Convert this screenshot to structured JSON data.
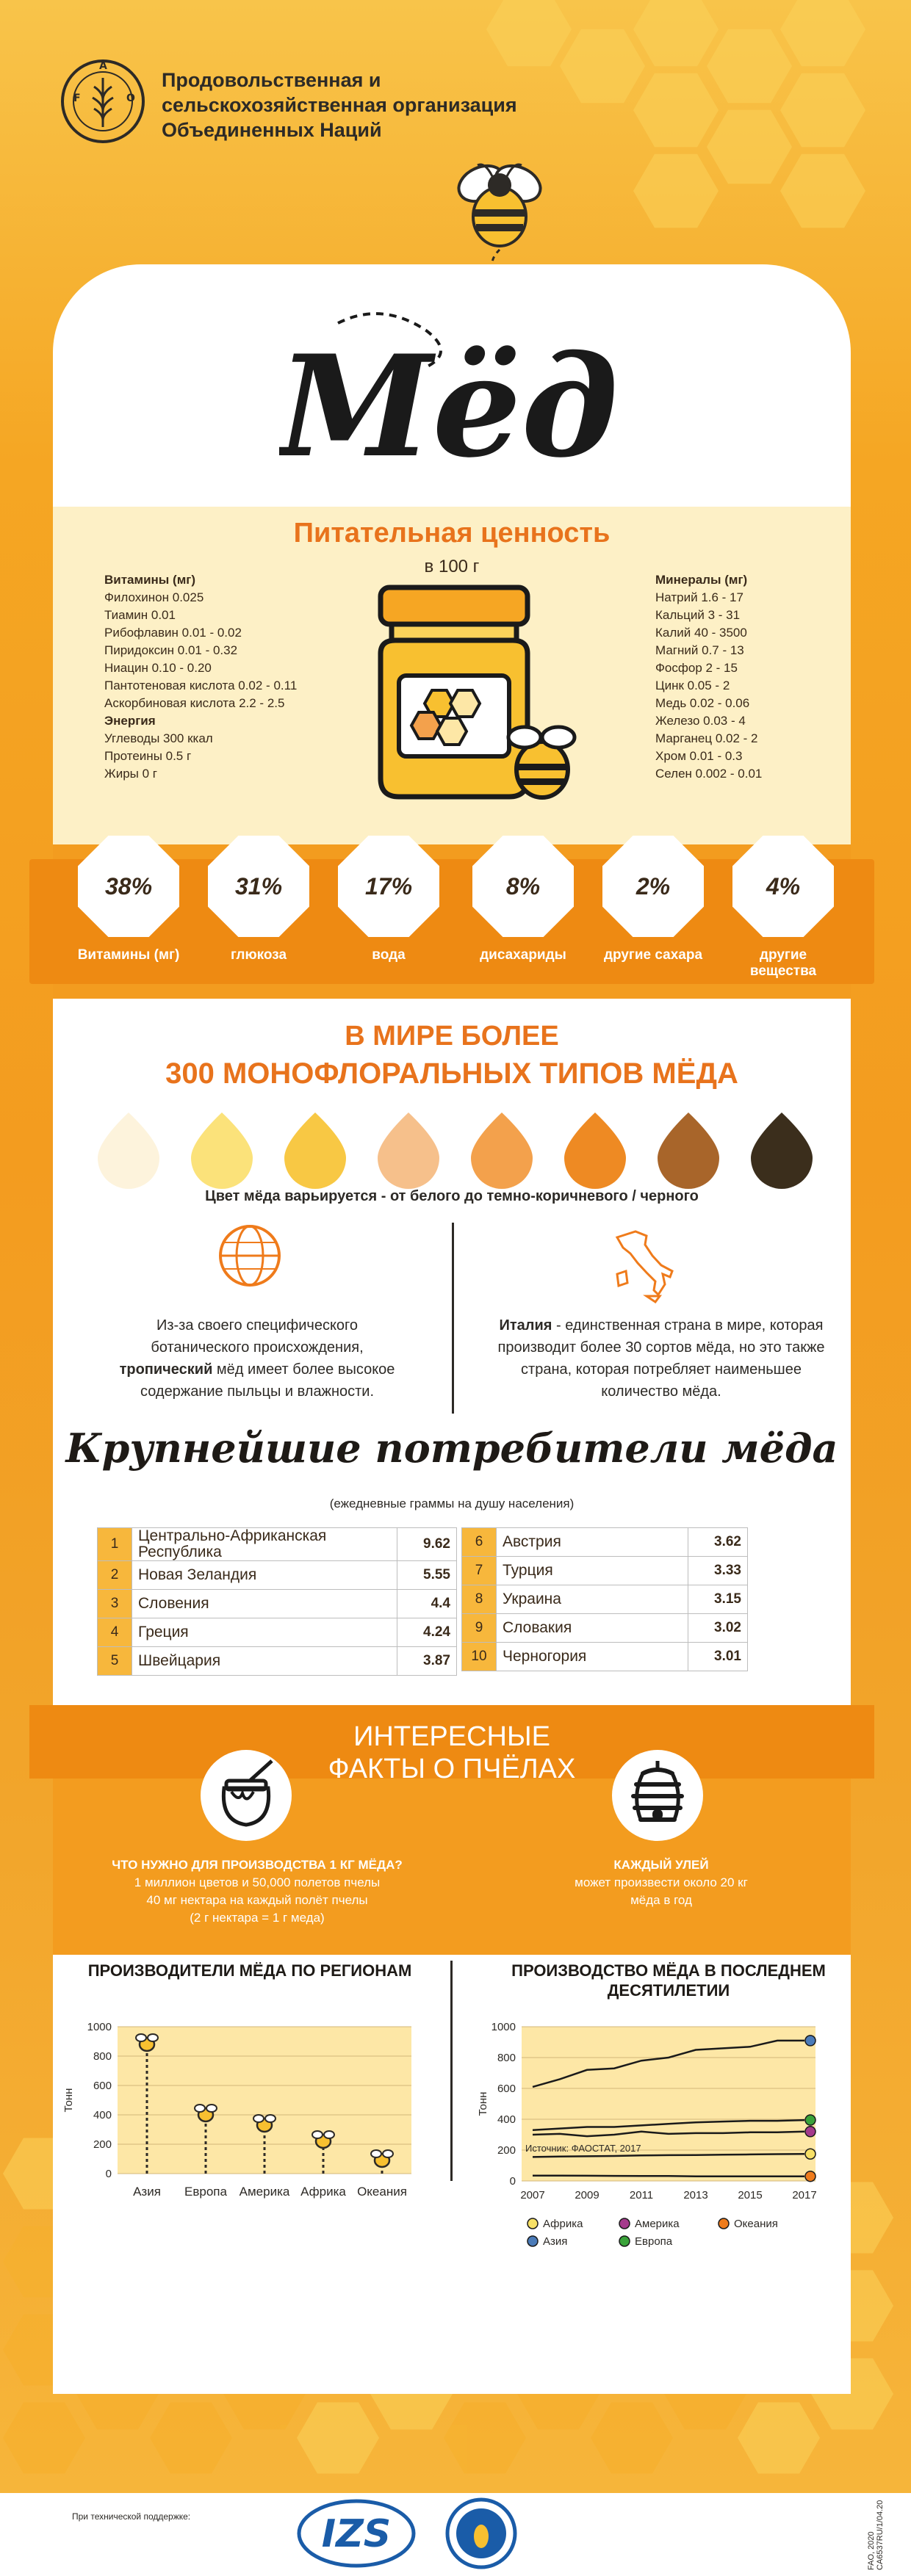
{
  "org": {
    "line1": "Продовольственная и",
    "line2": "сельскохозяйственная организация",
    "line3": "Объединенных Наций",
    "logo_text": "FAO",
    "logo_motto": "FIAT PANIS"
  },
  "title": "Мёд",
  "nutrition": {
    "heading": "Питательная ценность",
    "per": "в 100 г",
    "vitamins_head": "Витамины (мг)",
    "vitamins": [
      "Филохинон  0.025",
      "Тиамин 0.01",
      "Рибофлавин 0.01 - 0.02",
      "Пиридоксин 0.01 - 0.32",
      "Ниацин 0.10 - 0.20",
      "Пантотеновая кислота 0.02 - 0.11",
      "Аскорбиновая кислота 2.2 - 2.5"
    ],
    "energy_head": "Энергия",
    "energy": [
      "Углеводы 300 ккал",
      "Протеины 0.5 г",
      "Жиры  0 г"
    ],
    "minerals_head": "Минералы (мг)",
    "minerals": [
      "Натрий 1.6 - 17",
      "Кальций 3 - 31",
      "Калий 40 - 3500",
      "Магний 0.7 - 13",
      "Фосфор 2 - 15",
      "Цинк 0.05 - 2",
      "Медь 0.02 - 0.06",
      "Железо 0.03 - 4",
      "Марганец 0.02 - 2",
      "Хром 0.01 - 0.3",
      "Селен 0.002 - 0.01"
    ]
  },
  "composition": [
    {
      "value": "38%",
      "label": "Витамины (мг)"
    },
    {
      "value": "31%",
      "label": "глюкоза"
    },
    {
      "value": "17%",
      "label": "вода"
    },
    {
      "value": "8%",
      "label": "дисахариды"
    },
    {
      "value": "2%",
      "label": "другие сахара"
    },
    {
      "value": "4%",
      "label": "другие вещества"
    }
  ],
  "monofloral": {
    "line1": "В МИРЕ БОЛЕЕ",
    "line2": "300 МОНОФЛОРАЛЬНЫХ ТИПОВ МЁДА",
    "drop_colors": [
      "#fdf3dc",
      "#fbe27a",
      "#f8c844",
      "#f6c08b",
      "#f3a14c",
      "#ee8a23",
      "#a8652a",
      "#3b2e1c"
    ],
    "color_note": "Цвет мёда варьируется - от белого до темно-коричневого / черного"
  },
  "facts": {
    "left_1": "Из-за своего специфического ботанического происхождения, ",
    "left_bold": "тропический",
    "left_2": " мёд имеет более высокое содержание пыльцы и влажности.",
    "right_bold": "Италия",
    "right_2": " - единственная страна в мире, которая производит более 30 сортов мёда, но это также страна, которая потребляет наименьшее количество мёда."
  },
  "consumers": {
    "title": "Крупнейшие потребители мёда",
    "subtitle": "(ежедневные граммы на душу населения)",
    "left": [
      {
        "n": "1",
        "country": "Центрально-Африканская Республика",
        "value": "9.62"
      },
      {
        "n": "2",
        "country": "Новая Зеландия",
        "value": "5.55"
      },
      {
        "n": "3",
        "country": "Словения",
        "value": "4.4"
      },
      {
        "n": "4",
        "country": "Греция",
        "value": "4.24"
      },
      {
        "n": "5",
        "country": "Швейцария",
        "value": "3.87"
      }
    ],
    "right": [
      {
        "n": "6",
        "country": "Австрия",
        "value": "3.62"
      },
      {
        "n": "7",
        "country": "Турция",
        "value": "3.33"
      },
      {
        "n": "8",
        "country": "Украина",
        "value": "3.15"
      },
      {
        "n": "9",
        "country": "Словакия",
        "value": "3.02"
      },
      {
        "n": "10",
        "country": "Черногория",
        "value": "3.01"
      }
    ]
  },
  "bees": {
    "title1": "ИНТЕРЕСНЫЕ",
    "title2": "ФАКТЫ О ПЧЁЛАХ",
    "left_q": "ЧТО НУЖНО ДЛЯ  ПРОИЗВОДСТВА 1 КГ МЁДА?",
    "left_l1": "1 миллион цветов и 50,000 полетов пчелы",
    "left_l2": "40 мг нектара на каждый полёт пчелы",
    "left_l3": "(2 г нектара = 1 г меда)",
    "right_q": "КАЖДЫЙ УЛЕЙ",
    "right_l1": "может произвести около 20 кг",
    "right_l2": "мёда в год"
  },
  "chart_titles": {
    "regions": "ПРОИЗВОДИТЕЛИ МЁДА ПО РЕГИОНАМ",
    "decade": "ПРОИЗВОДСТВО МЁДА В ПОСЛЕДНЕМ ДЕСЯТИЛЕТИИ"
  },
  "chart_data": [
    {
      "type": "scatter",
      "title": "ПРОИЗВОДИТЕЛИ МЁДА ПО РЕГИОНАМ",
      "ylabel": "Тонн",
      "categories": [
        "Азия",
        "Европа",
        "Америка",
        "Африка",
        "Океания"
      ],
      "values": [
        880,
        400,
        330,
        220,
        90
      ],
      "ylim": [
        0,
        1000
      ],
      "yticks": [
        "0",
        "200",
        "400",
        "600",
        "800",
        "1000"
      ]
    },
    {
      "type": "line",
      "title": "ПРОИЗВОДСТВО МЁДА В ПОСЛЕДНЕМ ДЕСЯТИЛЕТИИ",
      "ylabel": "Тонн",
      "x": [
        2007,
        2008,
        2009,
        2010,
        2011,
        2012,
        2013,
        2014,
        2015,
        2016,
        2017
      ],
      "xticks": [
        "2007",
        "2009",
        "2011",
        "2013",
        "2015",
        "2017"
      ],
      "yticks": [
        "0",
        "200",
        "400",
        "600",
        "800",
        "1000"
      ],
      "ylim": [
        0,
        1000
      ],
      "series": [
        {
          "name": "Африка",
          "color": "#f7e066",
          "values": [
            155,
            158,
            160,
            162,
            165,
            167,
            168,
            170,
            172,
            174,
            175
          ]
        },
        {
          "name": "Америка",
          "color": "#a53a8c",
          "values": [
            300,
            305,
            290,
            300,
            320,
            305,
            310,
            310,
            315,
            315,
            320
          ]
        },
        {
          "name": "Океания",
          "color": "#ef7b1b",
          "values": [
            35,
            35,
            34,
            33,
            32,
            32,
            30,
            30,
            30,
            30,
            30
          ]
        },
        {
          "name": "Азия",
          "color": "#4b7bb8",
          "values": [
            610,
            660,
            720,
            730,
            780,
            800,
            850,
            860,
            870,
            910,
            910
          ]
        },
        {
          "name": "Европа",
          "color": "#3aa33a",
          "values": [
            330,
            340,
            350,
            350,
            360,
            370,
            380,
            385,
            390,
            390,
            395
          ]
        }
      ],
      "source_label": "Источник:",
      "source": "ФАОСТАТ, 2017"
    }
  ],
  "footer": {
    "tech": "При технической поддержке:",
    "izs": "IZS",
    "code": "FAO, 2020  CA6537RU/1/04.20"
  }
}
